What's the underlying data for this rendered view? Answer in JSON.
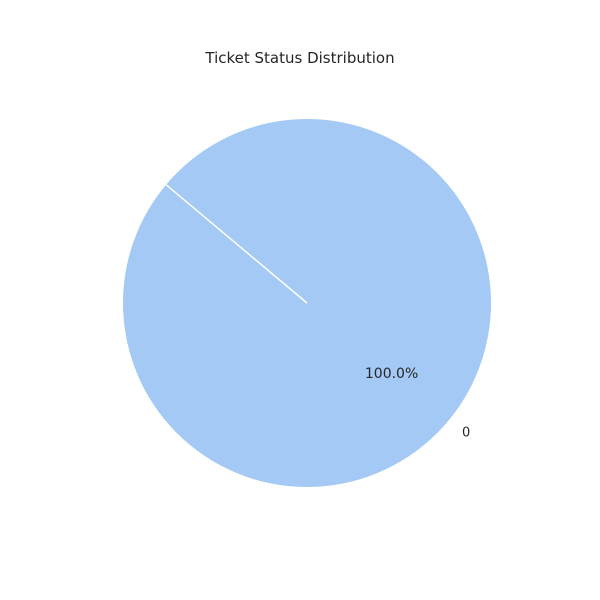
{
  "chart_data": {
    "type": "pie",
    "title": "Ticket Status Distribution",
    "categories": [
      "0"
    ],
    "values": [
      100
    ],
    "percent_labels": [
      "100.0%"
    ],
    "colors": [
      "#a3c9f4"
    ],
    "edge_color": "#ffffff",
    "start_angle_deg": 140
  }
}
